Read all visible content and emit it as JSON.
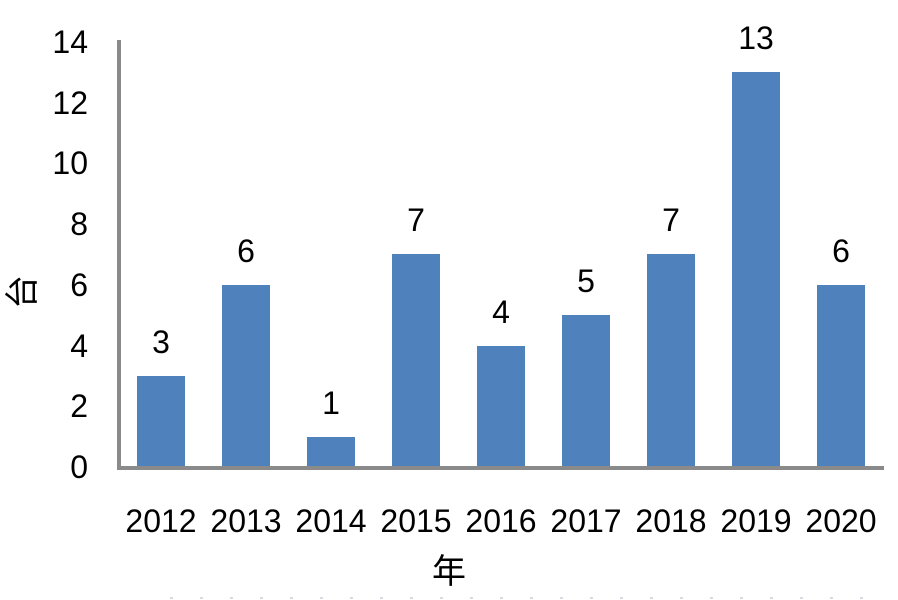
{
  "chart_data": {
    "type": "bar",
    "title": "",
    "categories": [
      "2012",
      "2013",
      "2014",
      "2015",
      "2016",
      "2017",
      "2018",
      "2019",
      "2020"
    ],
    "values": [
      3,
      6,
      1,
      7,
      4,
      5,
      7,
      13,
      6
    ],
    "xlabel": "年",
    "ylabel": "台",
    "ylim": [
      0,
      14
    ],
    "yticks": [
      0,
      2,
      4,
      6,
      8,
      10,
      12,
      14
    ],
    "data_labels": [
      3,
      6,
      1,
      7,
      4,
      5,
      7,
      13,
      6
    ],
    "grid": false,
    "legend": false,
    "bar_color": "#4F81BD",
    "axis_color": "#8A8A8A",
    "text_color": "#000000"
  }
}
